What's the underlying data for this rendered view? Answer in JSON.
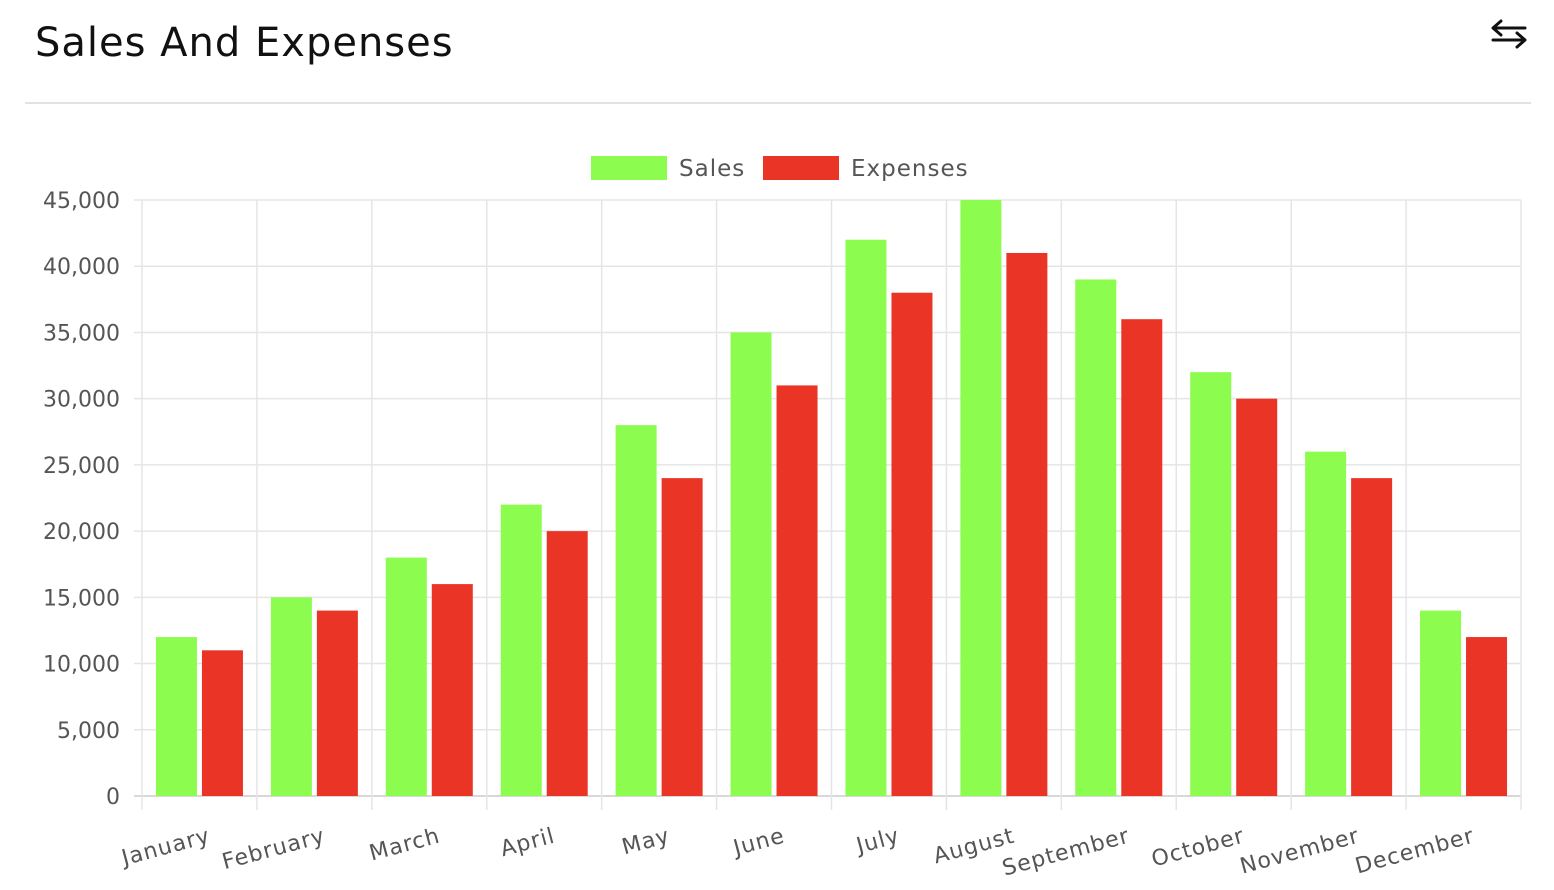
{
  "card": {
    "title": "Sales And Expenses",
    "expand_icon": "expand-horizontal-arrows-icon"
  },
  "chart_data": {
    "type": "bar",
    "categories": [
      "January",
      "February",
      "March",
      "April",
      "May",
      "June",
      "July",
      "August",
      "September",
      "October",
      "November",
      "December"
    ],
    "series": [
      {
        "name": "Sales",
        "color": "#8cfc4f",
        "values": [
          12000,
          15000,
          18000,
          22000,
          28000,
          35000,
          42000,
          45000,
          39000,
          32000,
          26000,
          14000
        ]
      },
      {
        "name": "Expenses",
        "color": "#e93426",
        "values": [
          11000,
          14000,
          16000,
          20000,
          24000,
          31000,
          38000,
          41000,
          36000,
          30000,
          24000,
          12000
        ]
      }
    ],
    "ylim": [
      0,
      45000
    ],
    "yticks": [
      "0",
      "5,000",
      "10,000",
      "15,000",
      "20,000",
      "25,000",
      "30,000",
      "35,000",
      "40,000",
      "45,000"
    ],
    "grid": true,
    "legend": "top-center"
  }
}
